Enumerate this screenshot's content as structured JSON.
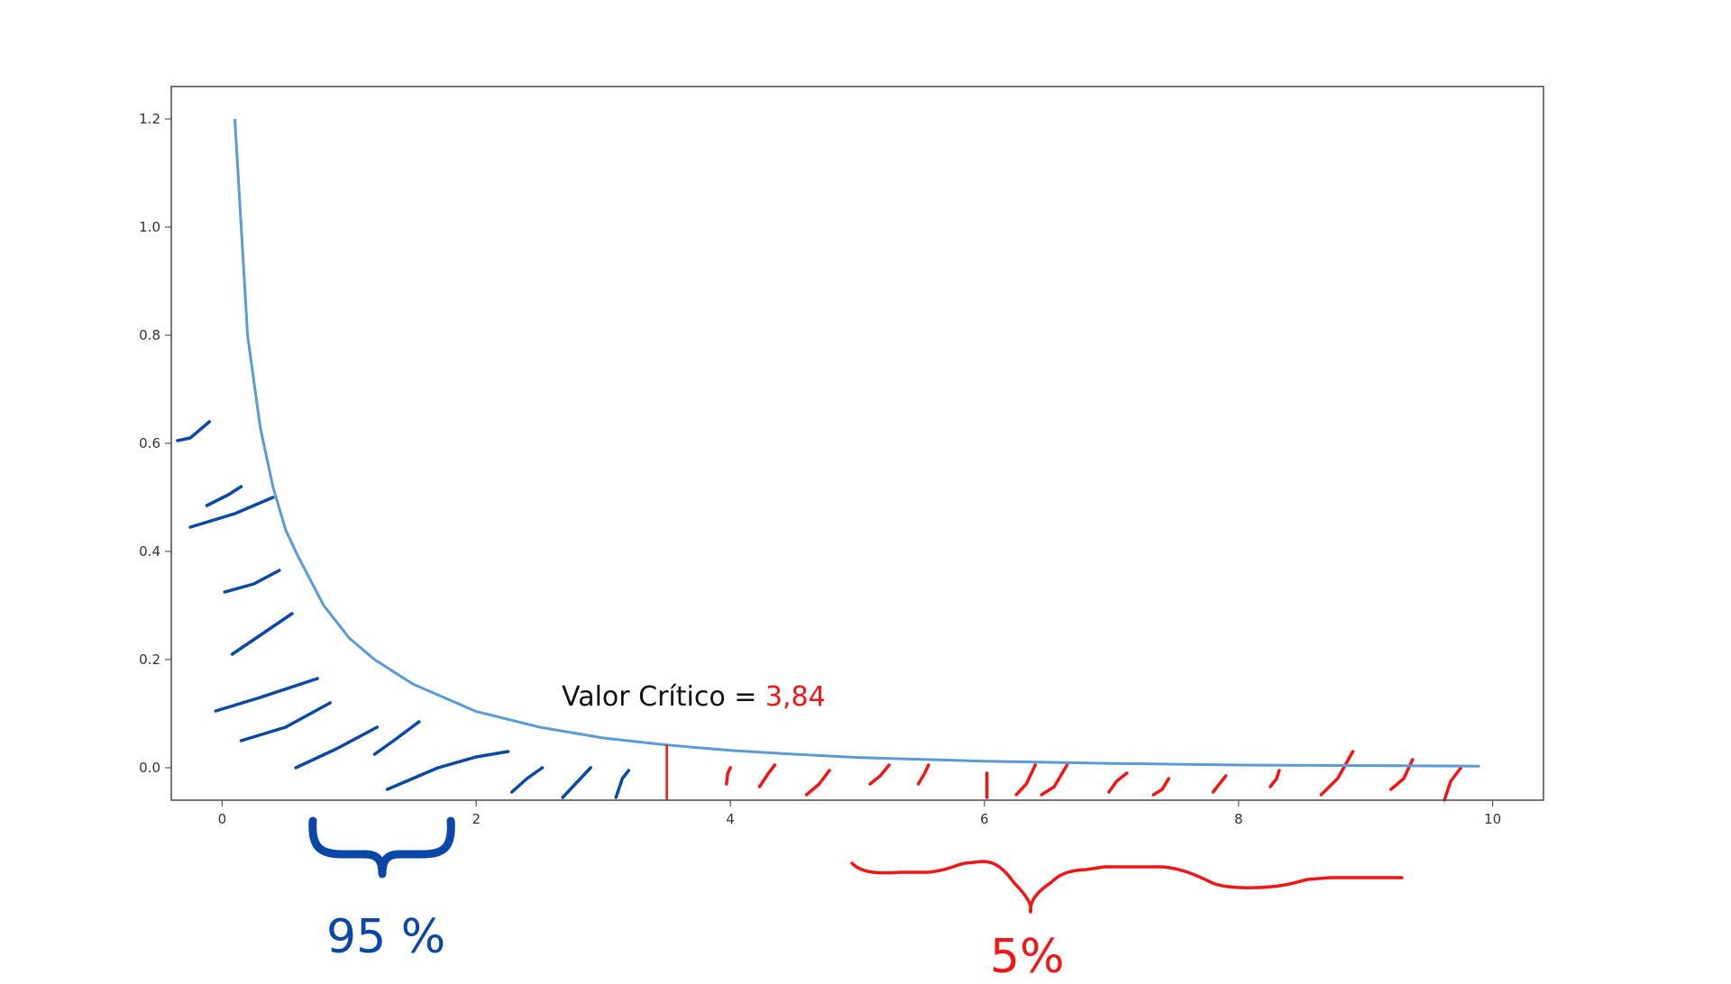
{
  "colors": {
    "curve": "#5b9bd5",
    "acceptance_region": "#0a47a8",
    "rejection_region": "#f01616",
    "axis_frame": "#555555",
    "tick_text": "#333333"
  },
  "chart_data": {
    "type": "line",
    "title": "",
    "xlabel": "",
    "ylabel": "",
    "xlim": [
      -0.4,
      10.4
    ],
    "ylim": [
      -0.06,
      1.26
    ],
    "x_ticks": [
      0,
      2,
      4,
      6,
      8,
      10
    ],
    "x_tick_labels": [
      "0",
      "2",
      "4",
      "6",
      "8",
      "10"
    ],
    "y_ticks": [
      0.0,
      0.2,
      0.4,
      0.6,
      0.8,
      1.0,
      1.2
    ],
    "y_tick_labels": [
      "0.0",
      "0.2",
      "0.4",
      "0.6",
      "0.8",
      "1.0",
      "1.2"
    ],
    "grid": false,
    "series": [
      {
        "type": "line",
        "x": [
          0.1,
          0.2,
          0.3,
          0.4,
          0.5,
          0.6,
          0.8,
          1.0,
          1.2,
          1.5,
          2.0,
          2.5,
          3.0,
          3.5,
          4.0,
          4.5,
          5.0,
          6.0,
          7.0,
          8.0,
          9.0,
          9.9
        ],
        "y": [
          1.2,
          0.8,
          0.63,
          0.52,
          0.44,
          0.39,
          0.3,
          0.24,
          0.2,
          0.155,
          0.104,
          0.075,
          0.055,
          0.042,
          0.032,
          0.025,
          0.019,
          0.012,
          0.008,
          0.005,
          0.004,
          0.003
        ]
      }
    ],
    "annotations": {
      "critical_value_label": "Valor Crítico = ",
      "critical_value": "3,84",
      "critical_value_x": 3.5,
      "acceptance_percent": "95 %",
      "rejection_percent": "5%"
    }
  }
}
